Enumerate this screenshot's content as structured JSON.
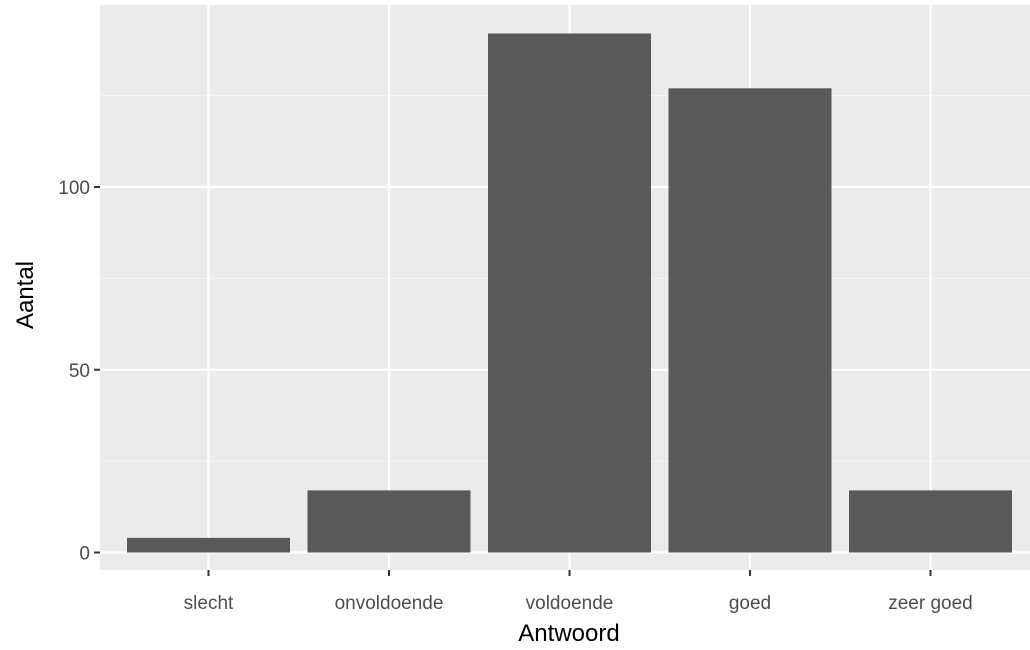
{
  "chart_data": {
    "type": "bar",
    "title": "",
    "xlabel": "Antwoord",
    "ylabel": "Aantal",
    "categories": [
      "slecht",
      "onvoldoende",
      "voldoende",
      "goed",
      "zeer goed"
    ],
    "values": [
      4,
      17,
      142,
      127,
      17
    ],
    "ylim": [
      0,
      150
    ],
    "yticks": [
      0,
      50,
      100
    ],
    "ytick_labels": [
      "0",
      "50",
      "100"
    ],
    "minor_yticks": [
      25,
      75,
      125
    ],
    "grid": true,
    "legend": "none",
    "colors": {
      "panel_background": "#ebebeb",
      "grid_major": "#ffffff",
      "grid_minor": "#f5f5f5",
      "bar_fill": "#595959",
      "tick_color": "#333333",
      "tick_label_color": "#4d4d4d"
    }
  }
}
